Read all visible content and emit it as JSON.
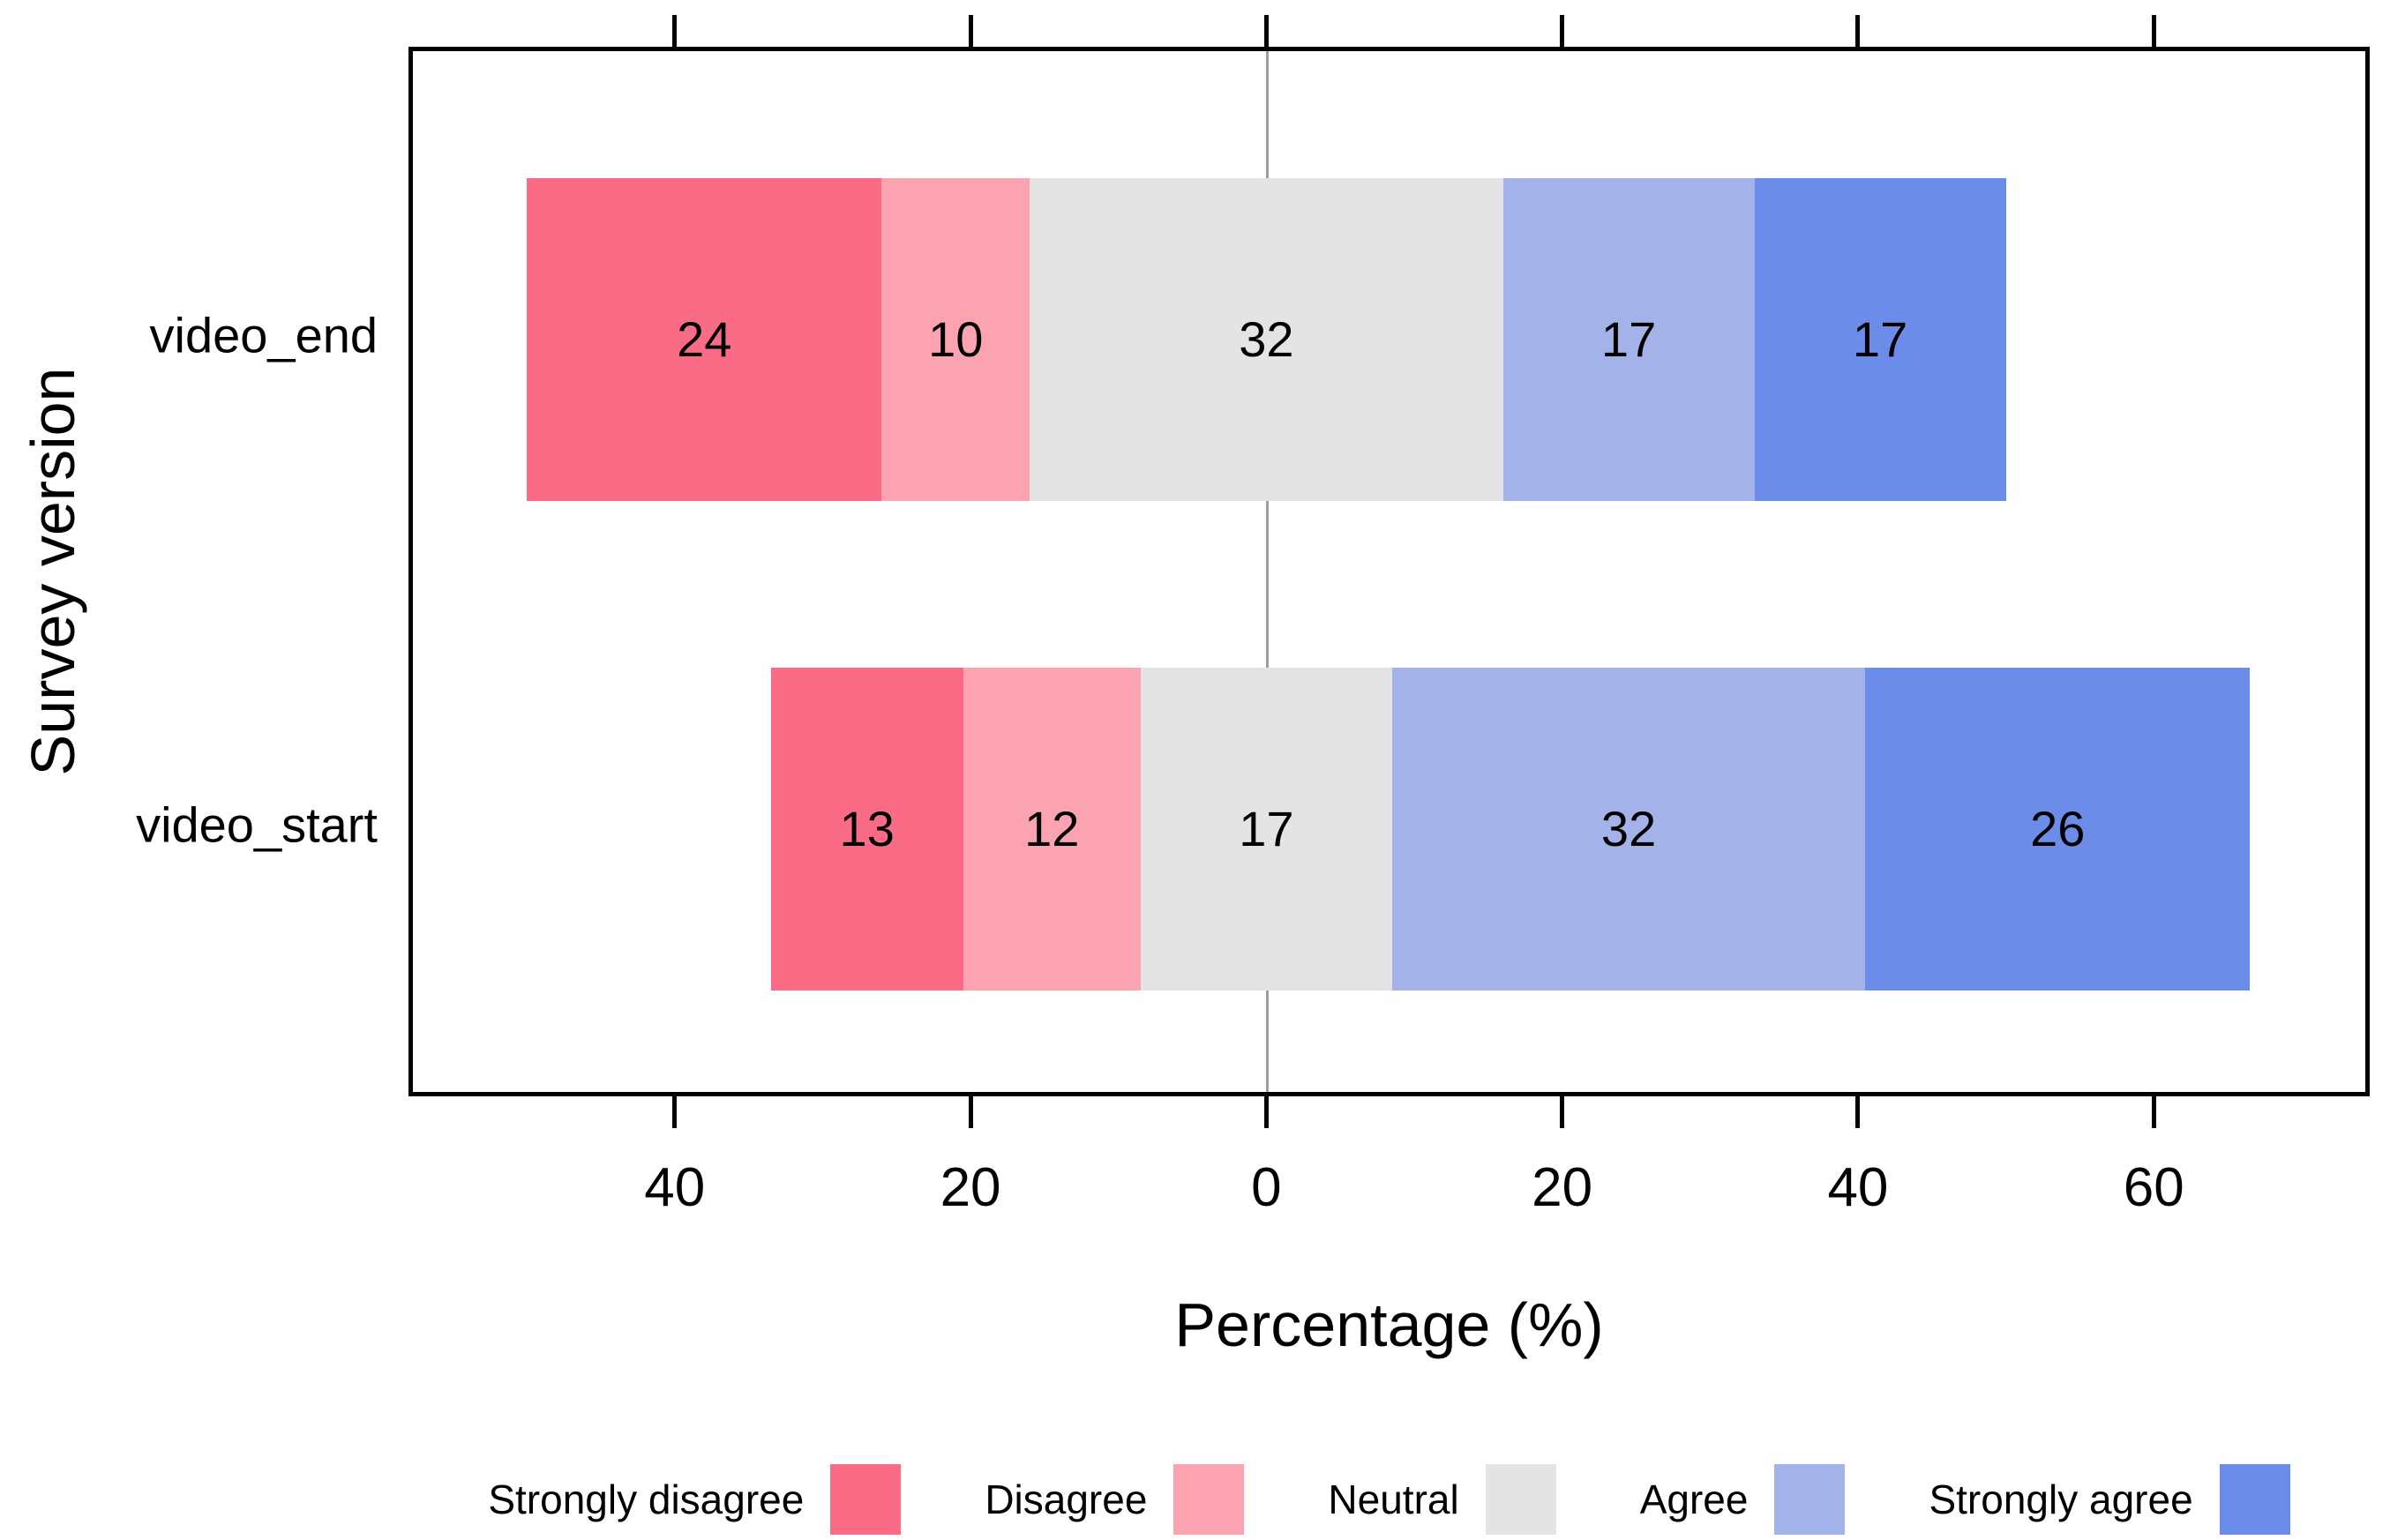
{
  "chart_data": {
    "type": "diverging_stacked_bar",
    "x_axis_title": "Percentage (%)",
    "y_axis_title": "Survey version",
    "levels": [
      {
        "label": "Strongly disagree",
        "color": "#FA6C86"
      },
      {
        "label": "Disagree",
        "color": "#FCA3B1"
      },
      {
        "label": "Neutral",
        "color": "#E4E4E5"
      },
      {
        "label": "Agree",
        "color": "#A3B2E8"
      },
      {
        "label": "Strongly agree",
        "color": "#6B8CE8"
      }
    ],
    "rows": [
      {
        "category": "video_end",
        "values": [
          24,
          10,
          32,
          17,
          17
        ]
      },
      {
        "category": "video_start",
        "values": [
          13,
          12,
          17,
          32,
          26
        ]
      }
    ],
    "neutral_split_on_zero": true,
    "x_ticks": [
      {
        "value": -40,
        "label": "40"
      },
      {
        "value": -20,
        "label": "20"
      },
      {
        "value": 0,
        "label": "0"
      },
      {
        "value": 20,
        "label": "20"
      },
      {
        "value": 40,
        "label": "40"
      },
      {
        "value": 60,
        "label": "60"
      }
    ],
    "xlim": [
      -58,
      74.6
    ],
    "zero_line_color": "#9E9E9E",
    "frame_color": "#000000",
    "text_color": "#000000",
    "legend_position": "bottom"
  }
}
